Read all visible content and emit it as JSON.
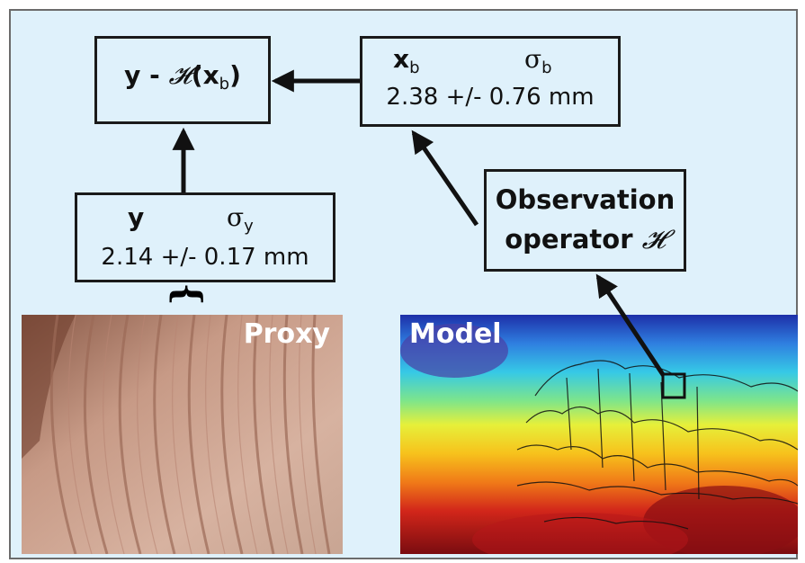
{
  "innovation_box": {
    "y": "y",
    "minus": " - ",
    "operator_symbol": "𝓗",
    "open_paren": "(",
    "x": "x",
    "x_subscript": "b",
    "close_paren": ")"
  },
  "background_box": {
    "symbol": "x",
    "symbol_subscript": "b",
    "sigma": "σ",
    "sigma_subscript": "b",
    "value": "2.38 +/- 0.76 mm"
  },
  "observation_box": {
    "symbol": "y",
    "sigma": "σ",
    "sigma_subscript": "y",
    "value": "2.14 +/- 0.17 mm"
  },
  "operator_box": {
    "line1": "Observation",
    "line2_text": "operator ",
    "line2_symbol": "𝓗"
  },
  "proxy_image": {
    "label": "Proxy"
  },
  "model_image": {
    "label": "Model"
  },
  "brace": "}"
}
